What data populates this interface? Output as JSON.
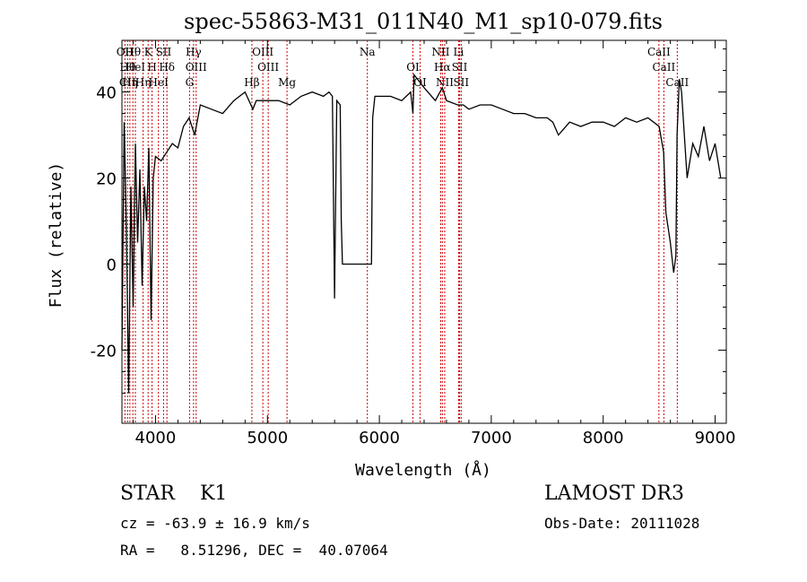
{
  "chart_data": {
    "type": "line",
    "title": "spec-55863-M31_011N40_M1_sp10-079.fits",
    "xlabel": "Wavelength (Å)",
    "ylabel": "Flux (relative)",
    "xlim": [
      3700,
      9100
    ],
    "ylim": [
      -37,
      52
    ],
    "xticks": [
      4000,
      5000,
      6000,
      7000,
      8000,
      9000
    ],
    "yticks": [
      -20,
      0,
      20,
      40
    ],
    "grid": false,
    "line_color": "#000000",
    "marker_color": "#cc0000",
    "series": [
      {
        "name": "flux",
        "x": [
          3700,
          3720,
          3740,
          3760,
          3780,
          3800,
          3820,
          3840,
          3860,
          3880,
          3900,
          3920,
          3940,
          3960,
          3980,
          4000,
          4050,
          4100,
          4150,
          4200,
          4250,
          4300,
          4350,
          4400,
          4500,
          4600,
          4700,
          4800,
          4870,
          4900,
          4950,
          5000,
          5100,
          5200,
          5300,
          5400,
          5500,
          5550,
          5580,
          5600,
          5620,
          5650,
          5660,
          5670,
          5700,
          5800,
          5900,
          5930,
          5940,
          5960,
          6000,
          6100,
          6200,
          6280,
          6300,
          6310,
          6400,
          6500,
          6563,
          6600,
          6700,
          6750,
          6800,
          6900,
          7000,
          7100,
          7200,
          7300,
          7400,
          7500,
          7550,
          7600,
          7700,
          7800,
          7900,
          8000,
          8100,
          8200,
          8300,
          8400,
          8450,
          8500,
          8540,
          8560,
          8600,
          8630,
          8650,
          8660,
          8680,
          8700,
          8750,
          8800,
          8850,
          8900,
          8950,
          9000,
          9050
        ],
        "y": [
          -20,
          33,
          8,
          -30,
          18,
          -10,
          28,
          5,
          22,
          -5,
          18,
          10,
          27,
          -13,
          20,
          25,
          24,
          26,
          28,
          27,
          32,
          34,
          30,
          37,
          36,
          35,
          38,
          40,
          36,
          38,
          38,
          38,
          38,
          37,
          39,
          40,
          39,
          40,
          39,
          -8,
          38,
          37,
          10,
          0,
          0,
          0,
          0,
          0,
          34,
          39,
          39,
          39,
          38,
          40,
          35,
          44,
          41,
          38,
          41,
          38,
          37,
          37,
          36,
          37,
          37,
          36,
          35,
          35,
          34,
          34,
          33,
          30,
          33,
          32,
          33,
          33,
          32,
          34,
          33,
          34,
          33,
          32,
          26,
          12,
          5,
          -2,
          2,
          30,
          43,
          40,
          20,
          28,
          25,
          32,
          24,
          28,
          20
        ]
      }
    ],
    "lines": [
      {
        "wl": 3727,
        "labels": [
          "OII"
        ]
      },
      {
        "wl": 3750,
        "labels": [
          "Hθ",
          "CII"
        ]
      },
      {
        "wl": 3771,
        "labels": [
          "Hη"
        ]
      },
      {
        "wl": 3798,
        "labels": [
          "Hθ"
        ]
      },
      {
        "wl": 3820,
        "labels": [
          "HeI"
        ]
      },
      {
        "wl": 3889,
        "labels": [
          "Hη"
        ]
      },
      {
        "wl": 3934,
        "labels": [
          "K"
        ]
      },
      {
        "wl": 3969,
        "labels": [
          "H"
        ]
      },
      {
        "wl": 4026,
        "labels": [
          "HeI"
        ]
      },
      {
        "wl": 4072,
        "labels": [
          "SII"
        ]
      },
      {
        "wl": 4102,
        "labels": [
          "Hδ"
        ]
      },
      {
        "wl": 4304,
        "labels": [
          "G"
        ]
      },
      {
        "wl": 4340,
        "labels": [
          "Hγ"
        ]
      },
      {
        "wl": 4363,
        "labels": [
          "OIII"
        ]
      },
      {
        "wl": 4861,
        "labels": [
          "Hβ"
        ]
      },
      {
        "wl": 4959,
        "labels": [
          "OIII"
        ]
      },
      {
        "wl": 5007,
        "labels": [
          "OIII"
        ]
      },
      {
        "wl": 5175,
        "labels": [
          "Mg"
        ]
      },
      {
        "wl": 5893,
        "labels": [
          "Na"
        ]
      },
      {
        "wl": 6300,
        "labels": [
          "OI"
        ]
      },
      {
        "wl": 6364,
        "labels": [
          "OI"
        ]
      },
      {
        "wl": 6548,
        "labels": [
          "NII"
        ]
      },
      {
        "wl": 6563,
        "labels": [
          "Hα"
        ]
      },
      {
        "wl": 6584,
        "labels": [
          "NII"
        ]
      },
      {
        "wl": 6708,
        "labels": [
          "Li"
        ]
      },
      {
        "wl": 6717,
        "labels": [
          "SII"
        ]
      },
      {
        "wl": 6731,
        "labels": [
          "SII"
        ]
      },
      {
        "wl": 8498,
        "labels": [
          "CaII"
        ]
      },
      {
        "wl": 8542,
        "labels": [
          "CaII"
        ]
      },
      {
        "wl": 8662,
        "labels": [
          "CaII"
        ]
      }
    ]
  },
  "info": {
    "class": "STAR    K1",
    "survey": "LAMOST DR3",
    "cz": "cz = -63.9 ± 16.9 km/s",
    "obs_date": "Obs-Date: 20111028",
    "coords": "RA =   8.51296, DEC =  40.07064"
  }
}
